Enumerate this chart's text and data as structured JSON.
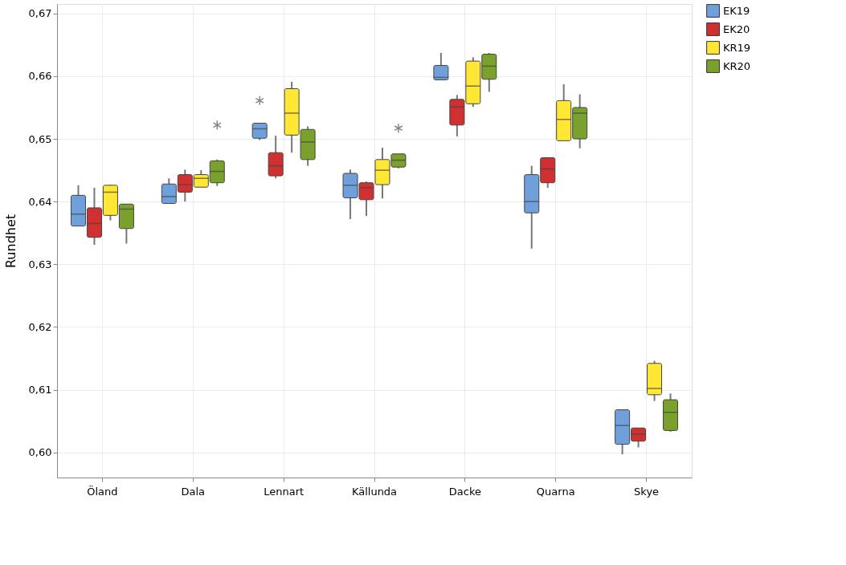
{
  "chart_data": {
    "type": "box",
    "ylabel": "Rundhet",
    "categories": [
      "Öland",
      "Dala",
      "Lennart",
      "Källunda",
      "Dacke",
      "Quarna",
      "Skye"
    ],
    "ylim": [
      0.596,
      0.6715
    ],
    "yticks": [
      {
        "value": 0.6,
        "label": "0,60"
      },
      {
        "value": 0.61,
        "label": "0,61"
      },
      {
        "value": 0.62,
        "label": "0,62"
      },
      {
        "value": 0.63,
        "label": "0,63"
      },
      {
        "value": 0.64,
        "label": "0,64"
      },
      {
        "value": 0.65,
        "label": "0,65"
      },
      {
        "value": 0.66,
        "label": "0,66"
      },
      {
        "value": 0.67,
        "label": "0,67"
      }
    ],
    "grid": true,
    "legend": "top right",
    "series": [
      {
        "name": "EK19",
        "color": "#6fa0dc",
        "boxes": [
          {
            "low": 0.6361,
            "q1": 0.6361,
            "median": 0.638,
            "q3": 0.641,
            "high": 0.6426
          },
          {
            "low": 0.6397,
            "q1": 0.6397,
            "median": 0.6408,
            "q3": 0.6428,
            "high": 0.6437
          },
          {
            "low": 0.6498,
            "q1": 0.6501,
            "median": 0.6516,
            "q3": 0.6525,
            "high": 0.6525,
            "outliers": [
              0.6561
            ]
          },
          {
            "low": 0.6372,
            "q1": 0.6406,
            "median": 0.6426,
            "q3": 0.6445,
            "high": 0.6451
          },
          {
            "low": 0.6594,
            "q1": 0.6594,
            "median": 0.6598,
            "q3": 0.6617,
            "high": 0.6637
          },
          {
            "low": 0.6325,
            "q1": 0.6382,
            "median": 0.64,
            "q3": 0.6443,
            "high": 0.6457
          },
          {
            "low": 0.5997,
            "q1": 0.6013,
            "median": 0.6043,
            "q3": 0.6068,
            "high": 0.6068
          }
        ]
      },
      {
        "name": "EK20",
        "color": "#d03030",
        "boxes": [
          {
            "low": 0.6331,
            "q1": 0.6343,
            "median": 0.6365,
            "q3": 0.639,
            "high": 0.6422
          },
          {
            "low": 0.64,
            "q1": 0.6415,
            "median": 0.6427,
            "q3": 0.6443,
            "high": 0.6451
          },
          {
            "low": 0.6437,
            "q1": 0.6441,
            "median": 0.6457,
            "q3": 0.6478,
            "high": 0.6505
          },
          {
            "low": 0.6377,
            "q1": 0.6403,
            "median": 0.6422,
            "q3": 0.643,
            "high": 0.6432
          },
          {
            "low": 0.6504,
            "q1": 0.6522,
            "median": 0.6551,
            "q3": 0.6563,
            "high": 0.657
          },
          {
            "low": 0.6422,
            "q1": 0.643,
            "median": 0.6452,
            "q3": 0.647,
            "high": 0.647
          },
          {
            "low": 0.6008,
            "q1": 0.6018,
            "median": 0.6029,
            "q3": 0.6039,
            "high": 0.6039
          }
        ]
      },
      {
        "name": "KR19",
        "color": "#ffe733",
        "boxes": [
          {
            "low": 0.637,
            "q1": 0.6378,
            "median": 0.6415,
            "q3": 0.6426,
            "high": 0.6427
          },
          {
            "low": 0.6423,
            "q1": 0.6423,
            "median": 0.6437,
            "q3": 0.6443,
            "high": 0.645
          },
          {
            "low": 0.6478,
            "q1": 0.6506,
            "median": 0.6541,
            "q3": 0.658,
            "high": 0.6591
          },
          {
            "low": 0.6405,
            "q1": 0.6427,
            "median": 0.645,
            "q3": 0.6467,
            "high": 0.6486
          },
          {
            "low": 0.6551,
            "q1": 0.6556,
            "median": 0.6584,
            "q3": 0.6624,
            "high": 0.663
          },
          {
            "low": 0.6497,
            "q1": 0.6497,
            "median": 0.6531,
            "q3": 0.6561,
            "high": 0.6587
          },
          {
            "low": 0.6082,
            "q1": 0.6092,
            "median": 0.6102,
            "q3": 0.6142,
            "high": 0.6146
          }
        ]
      },
      {
        "name": "KR20",
        "color": "#7aa12b",
        "boxes": [
          {
            "low": 0.6333,
            "q1": 0.6357,
            "median": 0.6388,
            "q3": 0.6396,
            "high": 0.6396
          },
          {
            "low": 0.6425,
            "q1": 0.643,
            "median": 0.6448,
            "q3": 0.6465,
            "high": 0.6467,
            "outliers": [
              0.6522
            ]
          },
          {
            "low": 0.6457,
            "q1": 0.6467,
            "median": 0.6495,
            "q3": 0.6515,
            "high": 0.652
          },
          {
            "low": 0.6453,
            "q1": 0.6455,
            "median": 0.6466,
            "q3": 0.6476,
            "high": 0.6476,
            "outliers": [
              0.6517
            ]
          },
          {
            "low": 0.6575,
            "q1": 0.6595,
            "median": 0.6616,
            "q3": 0.6635,
            "high": 0.6637
          },
          {
            "low": 0.6485,
            "q1": 0.65,
            "median": 0.6541,
            "q3": 0.655,
            "high": 0.6571
          },
          {
            "low": 0.6033,
            "q1": 0.6035,
            "median": 0.6064,
            "q3": 0.6084,
            "high": 0.6094
          }
        ]
      }
    ]
  }
}
